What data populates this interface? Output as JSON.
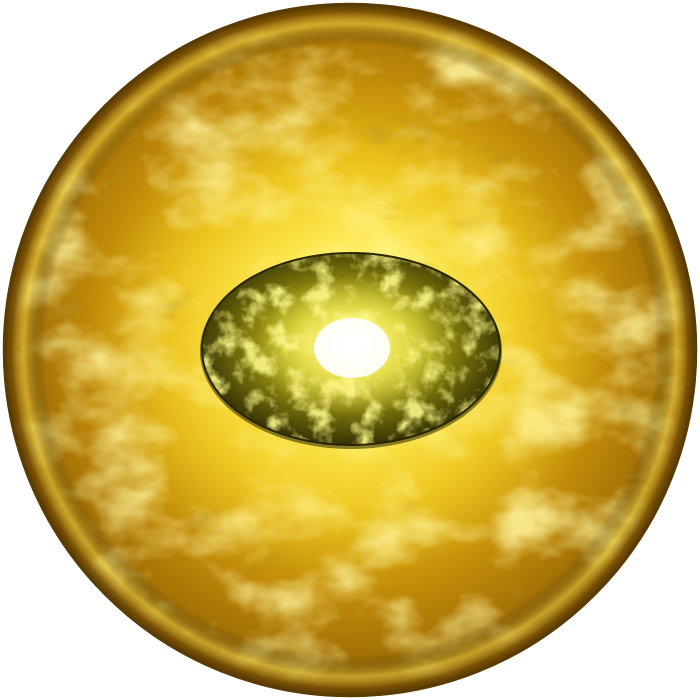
{
  "scene": {
    "subject": "golden-orb",
    "palette": {
      "background": "#ffffff",
      "gold_bright": "#fff36a",
      "gold_mid": "#e3b80f",
      "gold_deep": "#8a5a05",
      "rim_dark": "#5a3b02",
      "core_glow": "#ffffff",
      "core_yellow": "#f4f03a",
      "core_olive": "#5f5a08",
      "core_dark": "#2c2a04"
    }
  }
}
